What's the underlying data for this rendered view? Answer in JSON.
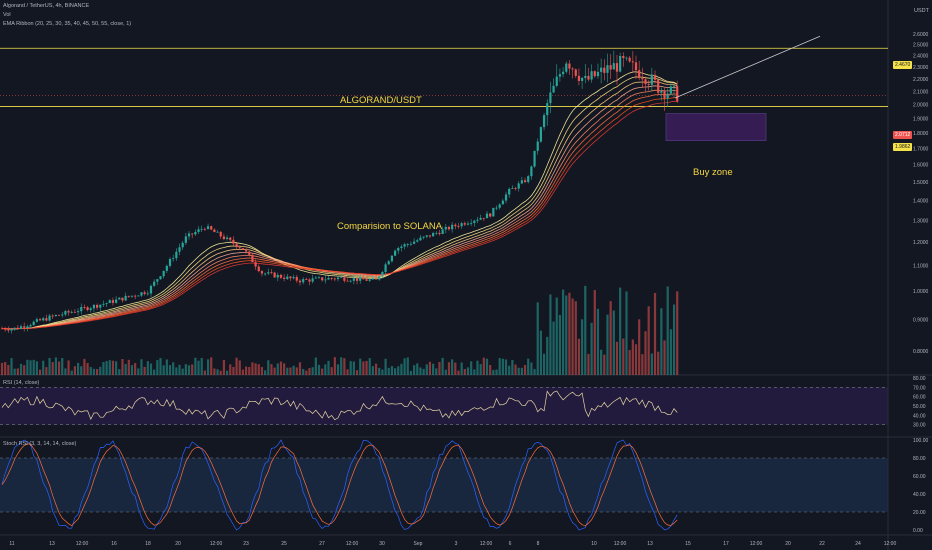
{
  "header": {
    "symbol_line": "Algorand / TetherUS, 4h, BINANCE",
    "vol_label": "Vol",
    "ema_label": "EMA Ribbon (20, 25, 30, 35, 40, 45, 50, 55, close, 1)",
    "quote_currency": "USDT"
  },
  "annotations": {
    "title": "ALGORAND/USDT",
    "comparison": "Comparision to SOLANA",
    "buy_zone": "Buy zone"
  },
  "price_tags": {
    "resistance": "2.4670",
    "current": "2.0712",
    "support": "1.9862"
  },
  "panes": {
    "rsi_label": "RSI (14, close)",
    "stoch_label": "Stoch RSI (3, 3, 14, 14, close)"
  },
  "colors": {
    "background": "#131722",
    "up": "#26a69a",
    "down": "#ef5350",
    "level_line": "#f5e14a",
    "rsi_line": "#e6d7a4",
    "rsi_band": "#2a1e4a",
    "stoch_k": "#2962ff",
    "stoch_d": "#ff6d3a",
    "stoch_band": "#1b2f4a",
    "buy_zone_fill": "#3b1f5c"
  },
  "chart_data": {
    "type": "candlestick",
    "x_ticks": [
      "11",
      "13",
      "12:00",
      "16",
      "18",
      "20",
      "12:00",
      "23",
      "25",
      "27",
      "12:00",
      "30",
      "Sep",
      "3",
      "12:00",
      "6",
      "8",
      "10",
      "12:00",
      "13",
      "15",
      "17",
      "12:00",
      "20",
      "22",
      "24",
      "12:00"
    ],
    "y_ticks": [
      "2.6000",
      "2.5000",
      "2.4000",
      "2.3000",
      "2.2000",
      "2.1000",
      "2.0000",
      "1.9000",
      "1.8000",
      "1.7000",
      "1.6000",
      "1.5000",
      "1.4000",
      "1.3000",
      "1.2000",
      "1.1000",
      "1.0000",
      "0.9000",
      "0.8000"
    ],
    "y_range": [
      0.74,
      2.69
    ],
    "y_scale": "log",
    "levels": [
      2.467,
      1.986
    ],
    "current_price": 2.0712,
    "buy_zone": {
      "y_range": [
        1.75,
        1.935
      ]
    },
    "trendline": "rising from about 2.05 near Sep 15 to about 2.58 near Sep 22",
    "price_anchors": [
      {
        "x": "Aug 11",
        "price": 0.87
      },
      {
        "x": "Aug 13",
        "price": 0.91
      },
      {
        "x": "Aug 16",
        "price": 0.96
      },
      {
        "x": "Aug 18",
        "price": 1.0
      },
      {
        "x": "Aug 19",
        "price": 1.1
      },
      {
        "x": "Aug 20",
        "price": 1.22
      },
      {
        "x": "Aug 21",
        "price": 1.27
      },
      {
        "x": "Aug 23",
        "price": 1.17
      },
      {
        "x": "Aug 24",
        "price": 1.07
      },
      {
        "x": "Aug 26",
        "price": 1.04
      },
      {
        "x": "Aug 28",
        "price": 1.05
      },
      {
        "x": "Aug 30",
        "price": 1.04
      },
      {
        "x": "Aug 31",
        "price": 1.17
      },
      {
        "x": "Sep 3",
        "price": 1.27
      },
      {
        "x": "Sep 5",
        "price": 1.33
      },
      {
        "x": "Sep 6",
        "price": 1.45
      },
      {
        "x": "Sep 7",
        "price": 1.52
      },
      {
        "x": "Sep 8",
        "price": 2.0
      },
      {
        "x": "Sep 9",
        "price": 2.37
      },
      {
        "x": "Sep 10",
        "price": 2.18
      },
      {
        "x": "Sep 11",
        "price": 2.27
      },
      {
        "x": "Sep 12",
        "price": 2.34
      },
      {
        "x": "Sep 13",
        "price": 2.25
      },
      {
        "x": "Sep 14",
        "price": 2.12
      },
      {
        "x": "Sep 15",
        "price": 2.07
      }
    ],
    "rsi_levels": [
      80,
      70,
      60,
      50,
      40,
      30
    ],
    "rsi_bands": [
      70,
      30
    ],
    "stoch_levels": [
      100,
      80,
      60,
      40,
      20,
      0
    ],
    "stoch_bands": [
      80,
      20
    ],
    "grid": false
  }
}
